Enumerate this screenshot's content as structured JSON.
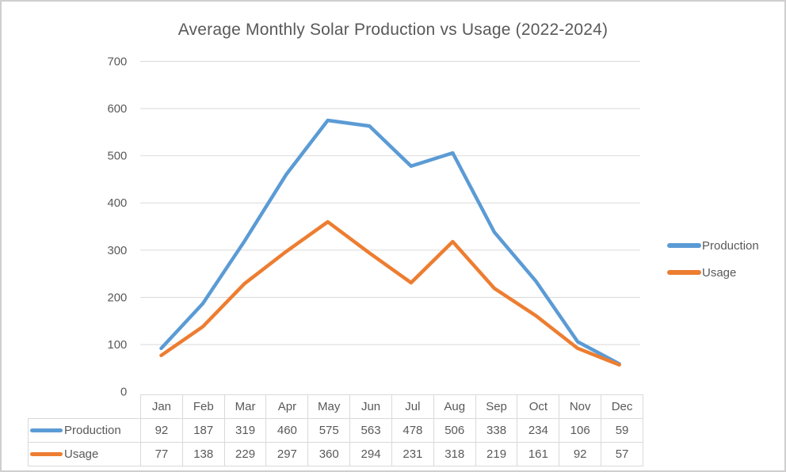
{
  "title": "Average Monthly Solar Production vs Usage (2022-2024)",
  "colors": {
    "production": "#5B9BD5",
    "usage": "#ED7D31",
    "grid": "#D9D9D9",
    "text": "#595959",
    "table_border": "#D9D9D9"
  },
  "chart_data": {
    "type": "line",
    "title": "Average Monthly Solar Production vs Usage (2022-2024)",
    "categories": [
      "Jan",
      "Feb",
      "Mar",
      "Apr",
      "May",
      "Jun",
      "Jul",
      "Aug",
      "Sep",
      "Oct",
      "Nov",
      "Dec"
    ],
    "series": [
      {
        "name": "Production",
        "color": "#5B9BD5",
        "values": [
          92,
          187,
          319,
          460,
          575,
          563,
          478,
          506,
          338,
          234,
          106,
          59
        ]
      },
      {
        "name": "Usage",
        "color": "#ED7D31",
        "values": [
          77,
          138,
          229,
          297,
          360,
          294,
          231,
          318,
          219,
          161,
          92,
          57
        ]
      }
    ],
    "xlabel": "",
    "ylabel": "",
    "ylim": [
      0,
      700
    ],
    "yticks": [
      0,
      100,
      200,
      300,
      400,
      500,
      600,
      700
    ],
    "grid": true,
    "legend_position": "right",
    "data_table_attached": true
  }
}
